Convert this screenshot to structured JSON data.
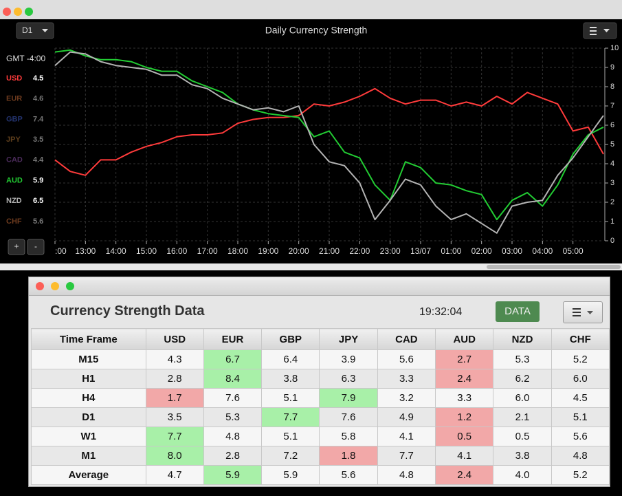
{
  "chart_data": {
    "type": "line",
    "title": "Daily Currency Strength",
    "timeframe": "D1",
    "timezone": "GMT -4:00",
    "zoom_in": "+",
    "zoom_out": "-",
    "categories": [
      ":00",
      null,
      "13:00",
      null,
      "14:00",
      null,
      "15:00",
      null,
      "16:00",
      null,
      "17:00",
      null,
      "18:00",
      null,
      "19:00",
      null,
      "20:00",
      null,
      "21:00",
      null,
      "22:00",
      null,
      "23:00",
      null,
      "13/07",
      null,
      "01:00",
      null,
      "02:00",
      null,
      "03:00",
      null,
      "04:00",
      null,
      "05:00",
      null,
      null
    ],
    "ylim": [
      0,
      10
    ],
    "yticks": [
      0,
      1,
      2,
      3,
      4,
      5,
      6,
      7,
      8,
      9,
      10
    ],
    "grid": true,
    "series": [
      {
        "name": "USD",
        "color": "#ff3b3b",
        "current": "4.5",
        "values": [
          4.2,
          3.6,
          3.4,
          4.2,
          4.2,
          4.6,
          4.9,
          5.1,
          5.4,
          5.5,
          5.5,
          5.6,
          6.1,
          6.3,
          6.4,
          6.4,
          6.5,
          7.1,
          7.0,
          7.2,
          7.5,
          7.9,
          7.4,
          7.1,
          7.3,
          7.3,
          7.0,
          7.2,
          7.0,
          7.5,
          7.1,
          7.7,
          7.4,
          7.1,
          5.7,
          5.9,
          4.5
        ]
      },
      {
        "name": "EUR",
        "color": "#6e3b1e",
        "current": "4.6"
      },
      {
        "name": "GBP",
        "color": "#23336e",
        "current": "7.4"
      },
      {
        "name": "JPY",
        "color": "#5e3e1c",
        "current": "3.5"
      },
      {
        "name": "CAD",
        "color": "#4c2c5c",
        "current": "4.4"
      },
      {
        "name": "AUD",
        "color": "#22cc33",
        "current": "5.9",
        "values": [
          9.8,
          9.9,
          9.6,
          9.4,
          9.4,
          9.3,
          9.0,
          8.8,
          8.8,
          8.3,
          8.0,
          7.7,
          7.1,
          6.8,
          6.6,
          6.5,
          6.4,
          5.4,
          5.7,
          4.6,
          4.3,
          2.9,
          2.1,
          4.1,
          3.8,
          3.0,
          2.9,
          2.6,
          2.4,
          1.1,
          2.1,
          2.5,
          1.8,
          2.9,
          4.5,
          5.5,
          5.9
        ]
      },
      {
        "name": "NZD",
        "color": "#b4b4b4",
        "current": "6.5",
        "values": [
          9.1,
          9.8,
          9.7,
          9.3,
          9.1,
          9.0,
          8.9,
          8.6,
          8.6,
          8.1,
          7.9,
          7.4,
          7.1,
          6.8,
          6.9,
          6.7,
          7.0,
          5.0,
          4.1,
          3.9,
          3.0,
          1.1,
          2.1,
          3.2,
          2.9,
          1.8,
          1.1,
          1.4,
          0.9,
          0.4,
          1.8,
          2.0,
          2.1,
          3.4,
          4.3,
          5.4,
          6.5
        ]
      },
      {
        "name": "CHF",
        "color": "#6e3b1e",
        "current": "5.6"
      }
    ]
  },
  "table": {
    "title": "Currency Strength Data",
    "time": "19:32:04",
    "button": "DATA",
    "header": [
      "Time Frame",
      "USD",
      "EUR",
      "GBP",
      "JPY",
      "CAD",
      "AUD",
      "NZD",
      "CHF"
    ],
    "rows": [
      {
        "label": "M15",
        "cells": [
          "4.3",
          "6.7",
          "6.4",
          "3.9",
          "5.6",
          "2.7",
          "5.3",
          "5.2"
        ],
        "best": 1,
        "worst": 5
      },
      {
        "label": "H1",
        "cells": [
          "2.8",
          "8.4",
          "3.8",
          "6.3",
          "3.3",
          "2.4",
          "6.2",
          "6.0"
        ],
        "best": 1,
        "worst": 5
      },
      {
        "label": "H4",
        "cells": [
          "1.7",
          "7.6",
          "5.1",
          "7.9",
          "3.2",
          "3.3",
          "6.0",
          "4.5"
        ],
        "best": 3,
        "worst": 0
      },
      {
        "label": "D1",
        "cells": [
          "3.5",
          "5.3",
          "7.7",
          "7.6",
          "4.9",
          "1.2",
          "2.1",
          "5.1"
        ],
        "best": 2,
        "worst": 5
      },
      {
        "label": "W1",
        "cells": [
          "7.7",
          "4.8",
          "5.1",
          "5.8",
          "4.1",
          "0.5",
          "0.5",
          "5.6"
        ],
        "best": 0,
        "worst": 5
      },
      {
        "label": "M1",
        "cells": [
          "8.0",
          "2.8",
          "7.2",
          "1.8",
          "7.7",
          "4.1",
          "3.8",
          "4.8"
        ],
        "best": 0,
        "worst": 3
      },
      {
        "label": "Average",
        "cells": [
          "4.7",
          "5.9",
          "5.9",
          "5.6",
          "4.8",
          "2.4",
          "4.0",
          "5.2"
        ],
        "best": 1,
        "worst": 5
      }
    ]
  }
}
